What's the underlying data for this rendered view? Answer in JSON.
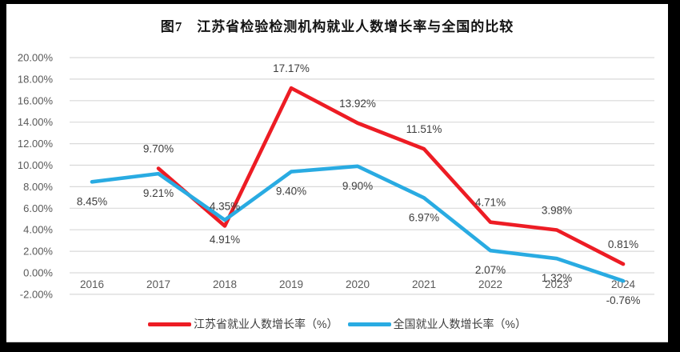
{
  "chart_data": {
    "type": "line",
    "title": "图7　江苏省检验检测机构就业人数增长率与全国的比较",
    "categories": [
      "2016",
      "2017",
      "2018",
      "2019",
      "2020",
      "2021",
      "2022",
      "2023",
      "2024"
    ],
    "series": [
      {
        "name": "江苏省就业人数增长率（%）",
        "color": "#ed1c24",
        "values": [
          null,
          9.7,
          4.35,
          17.17,
          13.92,
          11.51,
          4.71,
          3.98,
          0.81
        ],
        "labels": [
          "",
          "9.70%",
          "4.35%",
          "17.17%",
          "13.92%",
          "11.51%",
          "4.71%",
          "3.98%",
          "0.81%"
        ],
        "label_position": "above"
      },
      {
        "name": "全国就业人数增长率（%）",
        "color": "#29abe2",
        "values": [
          8.45,
          9.21,
          4.91,
          9.4,
          9.9,
          6.97,
          2.07,
          1.32,
          -0.76
        ],
        "labels": [
          "8.45%",
          "9.21%",
          "4.91%",
          "9.40%",
          "9.90%",
          "6.97%",
          "2.07%",
          "1.32%",
          "-0.76%"
        ],
        "label_position": "below"
      }
    ],
    "ylim": [
      -2,
      20
    ],
    "ytick_step": 2,
    "ytick_labels": [
      "20.00%",
      "18.00%",
      "16.00%",
      "14.00%",
      "12.00%",
      "10.00%",
      "8.00%",
      "6.00%",
      "4.00%",
      "2.00%",
      "0.00%",
      "-2.00%"
    ],
    "grid": true,
    "legend_position": "bottom",
    "gridline_color": "#d9d9d9",
    "axis_label_color": "#595959",
    "data_label_color": "#3d3d3d"
  }
}
